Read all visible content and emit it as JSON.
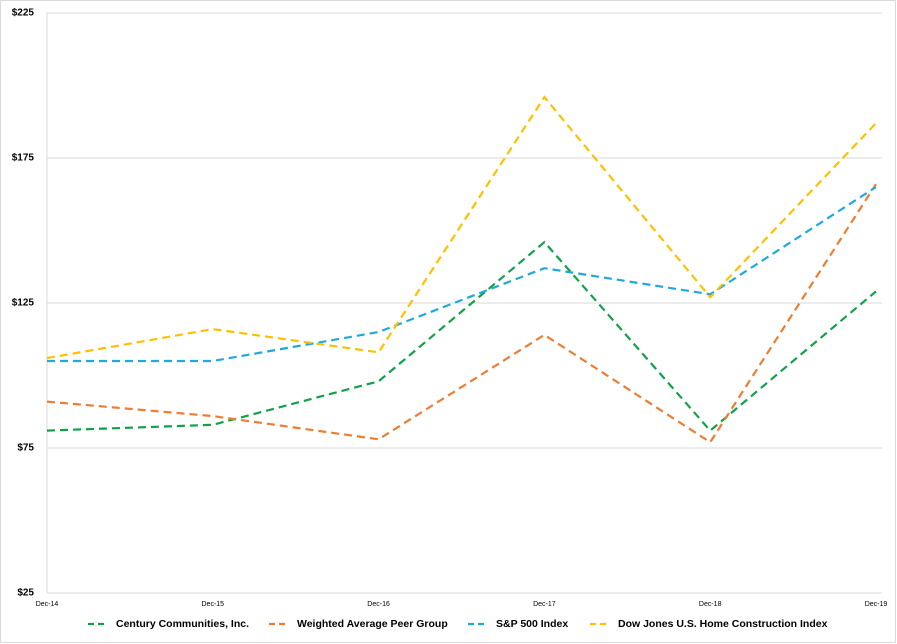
{
  "chart_data": {
    "type": "line",
    "categories": [
      "Dec-14",
      "Dec-15",
      "Dec-16",
      "Dec-17",
      "Dec-18",
      "Dec-19"
    ],
    "series": [
      {
        "name": "Century Communities, Inc.",
        "color": "#12a14b",
        "values": [
          81,
          83,
          98,
          146,
          81,
          129
        ]
      },
      {
        "name": "Weighted Average Peer Group",
        "color": "#ed7d31",
        "values": [
          91,
          86,
          78,
          114,
          77,
          166
        ]
      },
      {
        "name": "S&P 500 Index",
        "color": "#1fa9dd",
        "values": [
          105,
          105,
          115,
          137,
          128,
          165
        ]
      },
      {
        "name": "Dow Jones U.S. Home Construction Index",
        "color": "#ffc000",
        "values": [
          106,
          116,
          108,
          196,
          127,
          187
        ]
      }
    ],
    "ylim": [
      25,
      225
    ],
    "yticks": [
      {
        "value": 25,
        "label": "$25"
      },
      {
        "value": 75,
        "label": "$75"
      },
      {
        "value": 125,
        "label": "$125"
      },
      {
        "value": 175,
        "label": "$175"
      },
      {
        "value": 225,
        "label": "$225"
      }
    ],
    "grid": true,
    "legend": "bottom",
    "dashed": true
  }
}
